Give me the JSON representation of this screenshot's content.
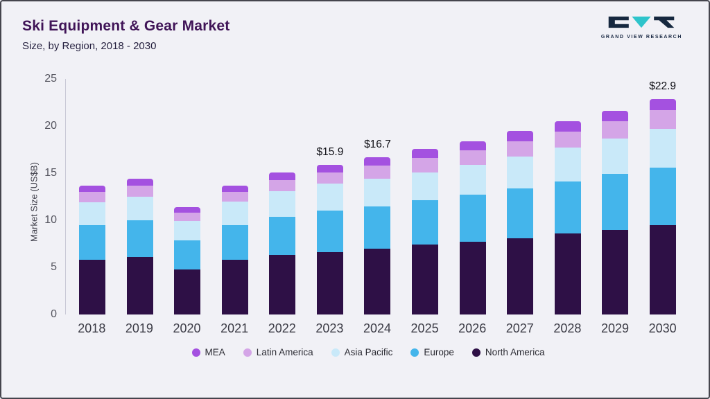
{
  "header": {
    "title": "Ski Equipment & Gear Market",
    "subtitle": "Size, by Region, 2018 - 2030"
  },
  "logo": {
    "text": "GRAND VIEW RESEARCH",
    "dark_color": "#16283f",
    "teal_color": "#2ec4cb"
  },
  "chart_data": {
    "type": "bar",
    "stacked": true,
    "title": "Ski Equipment & Gear Market Size, by Region, 2018 - 2030",
    "xlabel": "",
    "ylabel": "Market Size (US$B)",
    "ylim": [
      0,
      25
    ],
    "yticks": [
      0,
      5,
      10,
      15,
      20,
      25
    ],
    "grid": false,
    "legend_position": "bottom",
    "categories": [
      "2018",
      "2019",
      "2020",
      "2021",
      "2022",
      "2023",
      "2024",
      "2025",
      "2026",
      "2027",
      "2028",
      "2029",
      "2030"
    ],
    "series": [
      {
        "name": "North America",
        "color": "#2e1046",
        "values": [
          5.8,
          6.1,
          4.8,
          5.8,
          6.3,
          6.6,
          7.0,
          7.4,
          7.7,
          8.1,
          8.6,
          9.0,
          9.5
        ]
      },
      {
        "name": "Europe",
        "color": "#44b5eb",
        "values": [
          3.7,
          3.9,
          3.1,
          3.7,
          4.1,
          4.4,
          4.5,
          4.7,
          5.0,
          5.3,
          5.5,
          5.9,
          6.1
        ]
      },
      {
        "name": "Asia Pacific",
        "color": "#c9e9f9",
        "values": [
          2.4,
          2.5,
          2.0,
          2.5,
          2.7,
          2.9,
          2.9,
          3.0,
          3.2,
          3.4,
          3.6,
          3.8,
          4.1
        ]
      },
      {
        "name": "Latin America",
        "color": "#d4a5e7",
        "values": [
          1.1,
          1.2,
          0.9,
          1.0,
          1.2,
          1.2,
          1.4,
          1.5,
          1.5,
          1.6,
          1.7,
          1.8,
          2.0
        ]
      },
      {
        "name": "MEA",
        "color": "#a451e0",
        "values": [
          0.7,
          0.7,
          0.6,
          0.7,
          0.8,
          0.8,
          0.9,
          1.0,
          1.0,
          1.1,
          1.1,
          1.1,
          1.2
        ]
      }
    ],
    "totals": [
      13.7,
      14.4,
      11.4,
      13.7,
      15.1,
      15.9,
      16.7,
      17.6,
      18.4,
      19.5,
      20.5,
      21.6,
      22.9
    ],
    "annotations": [
      {
        "category": "2023",
        "label": "$15.9"
      },
      {
        "category": "2024",
        "label": "$16.7"
      },
      {
        "category": "2030",
        "label": "$22.9"
      }
    ]
  },
  "legend": {
    "items": [
      {
        "label": "MEA",
        "color": "#a451e0"
      },
      {
        "label": "Latin America",
        "color": "#d4a5e7"
      },
      {
        "label": "Asia Pacific",
        "color": "#c9e9f9"
      },
      {
        "label": "Europe",
        "color": "#44b5eb"
      },
      {
        "label": "North America",
        "color": "#2e1046"
      }
    ]
  }
}
